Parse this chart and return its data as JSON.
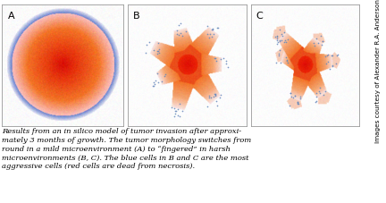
{
  "fig_width": 4.32,
  "fig_height": 2.27,
  "dpi": 100,
  "bg_color": "#ffffff",
  "labels": [
    "A",
    "B",
    "C"
  ],
  "caption_text": "Results from an in silico model of tumor invasion after approximately 3 months of growth. The tumor morphology switches from round in a mild microenvironment (A) to “fingered” in harsh microenvironments (B, C). The blue cells in B and C are the most aggressive cells (red cells are dead from necrosis).",
  "side_text": "Images courtesy of Alexander R.A. Anderson",
  "caption_fontsize": 6.0,
  "side_fontsize": 5.2,
  "label_fontsize": 8,
  "colors": {
    "red_dark": "#dd1100",
    "red_medium": "#ee5533",
    "red_light": "#ff9977",
    "red_pale": "#ffccbb",
    "red_very_pale": "#ffe8e0",
    "blue_cells": "#6688bb",
    "white": "#ffffff"
  },
  "seed": 7
}
